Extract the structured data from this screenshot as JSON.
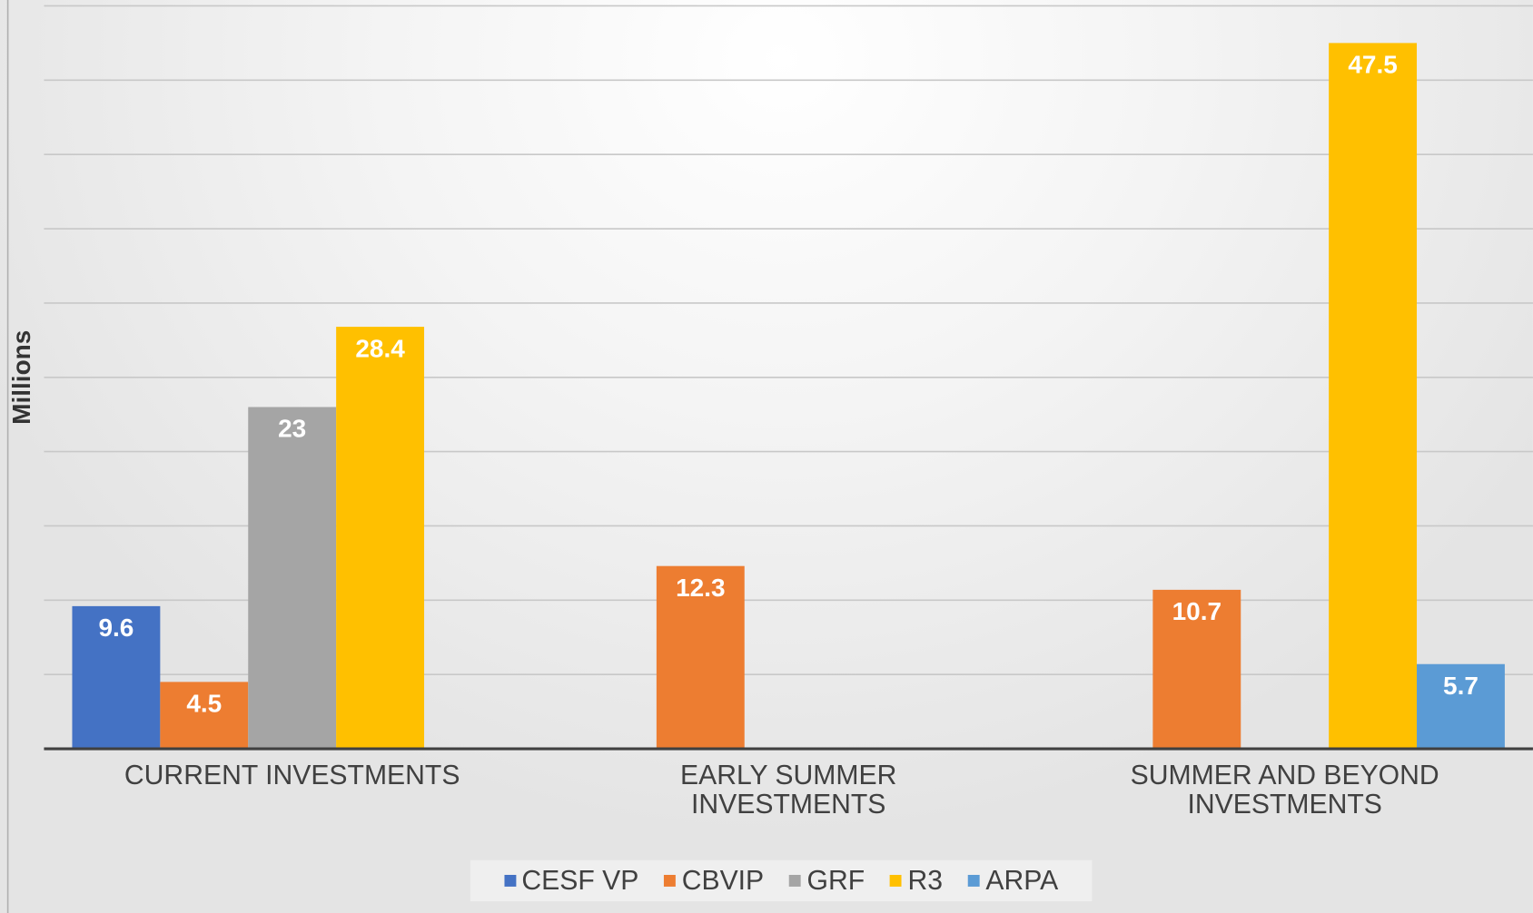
{
  "chart_data": {
    "type": "bar",
    "y_label": "Millions",
    "categories": [
      "CURRENT INVESTMENTS",
      "EARLY SUMMER INVESTMENTS",
      "SUMMER AND BEYOND INVESTMENTS"
    ],
    "series": [
      {
        "name": "CESF VP",
        "color": "#4472c4",
        "values": [
          9.6,
          null,
          null
        ]
      },
      {
        "name": "CBVIP",
        "color": "#ed7d31",
        "values": [
          4.5,
          12.3,
          10.7
        ]
      },
      {
        "name": "GRF",
        "color": "#a5a5a5",
        "values": [
          23,
          null,
          null
        ]
      },
      {
        "name": "R3",
        "color": "#ffc000",
        "values": [
          28.4,
          null,
          47.5
        ]
      },
      {
        "name": "ARPA",
        "color": "#5b9bd5",
        "values": [
          null,
          null,
          5.7
        ]
      }
    ],
    "ylim": [
      0,
      50
    ],
    "yticks": [
      0,
      5,
      10,
      15,
      20,
      25,
      30,
      35,
      40,
      45,
      50
    ],
    "grid": true,
    "legend": "bottom"
  }
}
